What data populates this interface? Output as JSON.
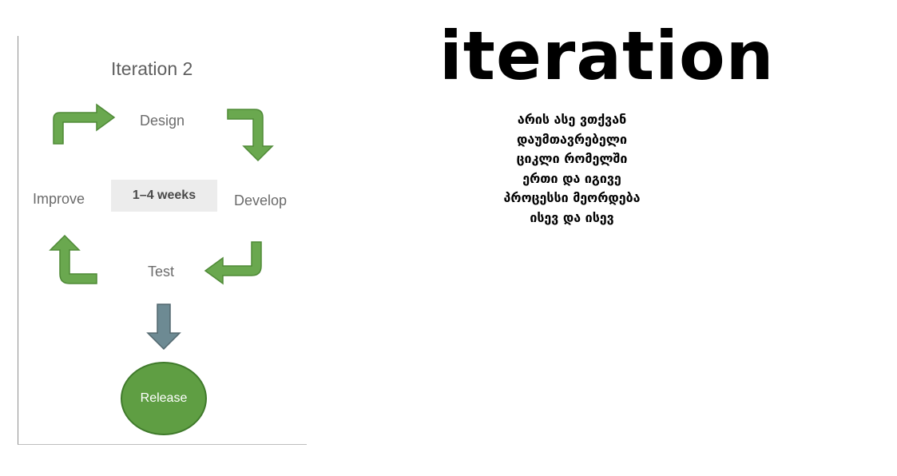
{
  "diagram": {
    "title": "Iteration 2",
    "steps": {
      "design": "Design",
      "develop": "Develop",
      "test": "Test",
      "improve": "Improve"
    },
    "duration": "1–4 weeks",
    "release": "Release",
    "colors": {
      "cycle_arrow": "#6aa84f",
      "release_arrow": "#6d8a93",
      "release_fill": "#5f9e43"
    }
  },
  "heading": "iteration",
  "description": [
    "არის ასე ვთქვან",
    "დაუმთავრებელი",
    "ციკლი  რომელში",
    "ერთი და იგივე",
    "პროცესსი მეორდება",
    "ისევ და ისევ"
  ]
}
